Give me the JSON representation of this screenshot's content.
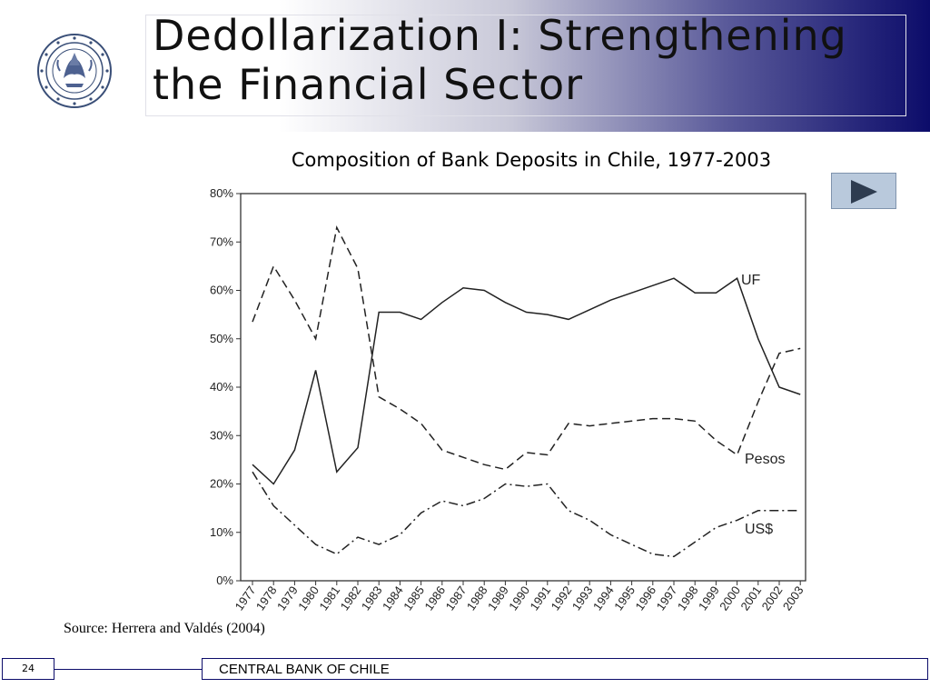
{
  "slide": {
    "title_line1": "Dedollarization I: Strengthening",
    "title_line2": "the Financial Sector",
    "logo": "banco-central-de-chile-seal",
    "logo_text": "BANCO CENTRAL DE CHILE",
    "source": "Source: Herrera and Valdés (2004)",
    "page_number": "24",
    "footer": "CENTRAL BANK OF CHILE",
    "play_icon": "play-triangle",
    "colors": {
      "header_dark": "#0c0c6a",
      "play_button": "#b9c9dc",
      "play_triangle": "#2e3c50"
    }
  },
  "chart_data": {
    "type": "line",
    "title": "Composition of Bank Deposits in Chile, 1977-2003",
    "xlabel": "",
    "ylabel": "",
    "ylim": [
      0,
      80
    ],
    "yticks": [
      "0%",
      "10%",
      "20%",
      "30%",
      "40%",
      "50%",
      "60%",
      "70%",
      "80%"
    ],
    "x": [
      "1977",
      "1978",
      "1979",
      "1980",
      "1981",
      "1982",
      "1983",
      "1984",
      "1985",
      "1986",
      "1987",
      "1988",
      "1989",
      "1990",
      "1991",
      "1992",
      "1993",
      "1994",
      "1995",
      "1996",
      "1997",
      "1998",
      "1999",
      "2000",
      "2001",
      "2002",
      "2003"
    ],
    "series": [
      {
        "name": "UF",
        "style": "solid",
        "values": [
          24,
          20,
          27,
          43.5,
          22.5,
          27.5,
          55.5,
          55.5,
          54,
          57.5,
          60.5,
          60,
          57.5,
          55.5,
          55,
          54,
          56,
          58,
          59.5,
          61,
          62.5,
          59.5,
          59.5,
          62.5,
          50,
          40,
          38.5
        ]
      },
      {
        "name": "Pesos",
        "style": "dashed",
        "values": [
          53.5,
          65,
          58,
          50,
          73,
          64.5,
          38,
          35.5,
          32.5,
          27,
          25.5,
          24,
          23,
          26.5,
          26,
          32.5,
          32,
          32.5,
          33,
          33.5,
          33.5,
          33,
          29,
          26,
          37,
          47,
          48
        ]
      },
      {
        "name": "US$",
        "style": "dash-dot",
        "values": [
          22.5,
          15.5,
          11.5,
          7.5,
          5.5,
          9,
          7.5,
          9.5,
          14,
          16.5,
          15.5,
          17,
          20,
          19.5,
          20,
          14.5,
          12.5,
          9.5,
          7.5,
          5.5,
          5,
          8,
          11,
          12.5,
          14.5,
          14.5,
          14.5
        ]
      }
    ],
    "grid": false,
    "legend": "inline labels at right"
  }
}
